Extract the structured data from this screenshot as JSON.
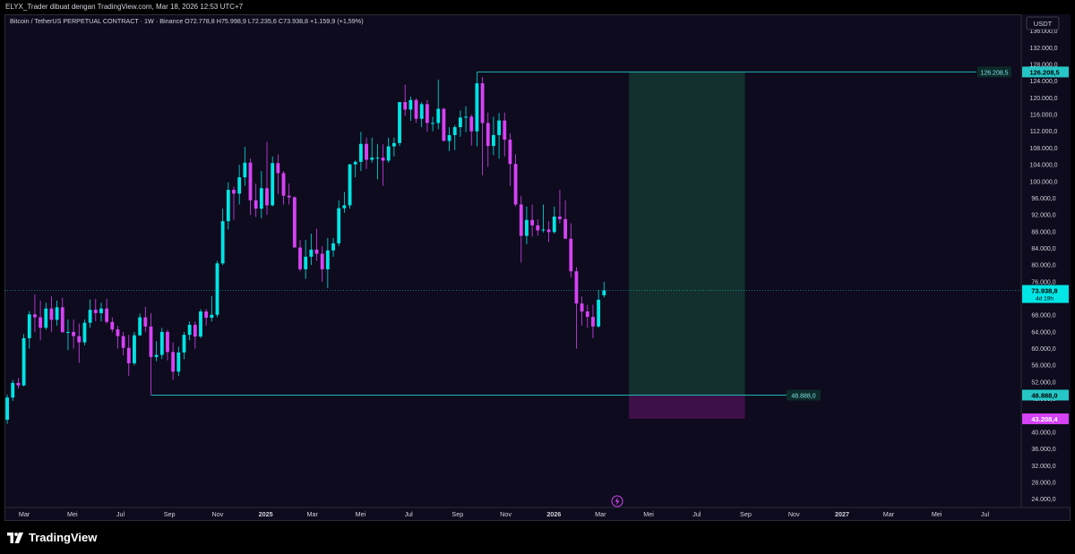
{
  "header": {
    "credit": "ELYX_Trader dibuat dengan TradingView.com, Mar 18, 2026 12:53 UTC+7"
  },
  "colors": {
    "bull": "#00e5e5",
    "bear": "#d642f5",
    "background": "#0d0b1d",
    "profit_zone": "#13302f",
    "loss_zone": "#3d1048",
    "level_line": "#1fb5b5"
  },
  "chart_data": {
    "type": "candlestick",
    "legend": "Bitcoin / TetherUS PERPETUAL CONTRACT · 1W · Binance  O72.778,8  H75.998,9  L72.235,6  C73.938,8  +1.159,9 (+1,59%)",
    "currency": "USDT",
    "y_range": [
      22000,
      140000
    ],
    "y_ticks": [
      24000,
      28000,
      32000,
      36000,
      40000,
      44000,
      48000,
      52000,
      56000,
      60000,
      64000,
      68000,
      72000,
      76000,
      80000,
      84000,
      88000,
      92000,
      96000,
      100000,
      104000,
      108000,
      112000,
      116000,
      120000,
      124000,
      128000,
      132000,
      136000
    ],
    "y_tick_labels": [
      "24.000,0",
      "28.000,0",
      "32.000,0",
      "36.000,0",
      "40.000,0",
      "44.000,0",
      "48.000,0",
      "52.000,0",
      "56.000,0",
      "60.000,0",
      "64.000,0",
      "68.000,0",
      "72.000,0",
      "76.000,0",
      "80.000,0",
      "84.000,0",
      "88.000,0",
      "92.000,0",
      "96.000,0",
      "100.000,0",
      "104.000,0",
      "108.000,0",
      "112.000,0",
      "116.000,0",
      "120.000,0",
      "124.000,0",
      "128.000,0",
      "132.000,0",
      "136.000,0"
    ],
    "x_range": [
      "2024-02-05",
      "2027-08-16"
    ],
    "x_ticks": [
      {
        "date": "2024-03-01",
        "label": "Mar",
        "bold": false
      },
      {
        "date": "2024-05-01",
        "label": "Mei",
        "bold": false
      },
      {
        "date": "2024-07-01",
        "label": "Jul",
        "bold": false
      },
      {
        "date": "2024-09-01",
        "label": "Sep",
        "bold": false
      },
      {
        "date": "2024-11-01",
        "label": "Nov",
        "bold": false
      },
      {
        "date": "2025-01-01",
        "label": "2025",
        "bold": true
      },
      {
        "date": "2025-03-01",
        "label": "Mar",
        "bold": false
      },
      {
        "date": "2025-05-01",
        "label": "Mei",
        "bold": false
      },
      {
        "date": "2025-07-01",
        "label": "Jul",
        "bold": false
      },
      {
        "date": "2025-09-01",
        "label": "Sep",
        "bold": false
      },
      {
        "date": "2025-11-01",
        "label": "Nov",
        "bold": false
      },
      {
        "date": "2026-01-01",
        "label": "2026",
        "bold": true
      },
      {
        "date": "2026-03-01",
        "label": "Mar",
        "bold": false
      },
      {
        "date": "2026-05-01",
        "label": "Mei",
        "bold": false
      },
      {
        "date": "2026-07-01",
        "label": "Jul",
        "bold": false
      },
      {
        "date": "2026-09-01",
        "label": "Sep",
        "bold": false
      },
      {
        "date": "2026-11-01",
        "label": "Nov",
        "bold": false
      },
      {
        "date": "2027-01-01",
        "label": "2027",
        "bold": true
      },
      {
        "date": "2027-03-01",
        "label": "Mar",
        "bold": false
      },
      {
        "date": "2027-05-01",
        "label": "Mei",
        "bold": false
      },
      {
        "date": "2027-07-01",
        "label": "Jul",
        "bold": false
      }
    ],
    "first_week": "2024-02-05",
    "candles": [
      [
        43000,
        49000,
        42000,
        48300
      ],
      [
        48300,
        52500,
        47500,
        51800
      ],
      [
        51800,
        53000,
        50500,
        51200
      ],
      [
        51200,
        63500,
        51000,
        62500
      ],
      [
        62500,
        69000,
        60000,
        68200
      ],
      [
        68200,
        73000,
        64000,
        67500
      ],
      [
        67500,
        71500,
        62000,
        65000
      ],
      [
        65000,
        71000,
        64500,
        69600
      ],
      [
        69600,
        72500,
        64000,
        66900
      ],
      [
        66900,
        71500,
        65500,
        69900
      ],
      [
        69900,
        72200,
        64500,
        63900
      ],
      [
        63900,
        67000,
        59600,
        64000
      ],
      [
        64000,
        67000,
        60000,
        63000
      ],
      [
        63000,
        66000,
        56600,
        61500
      ],
      [
        61500,
        67000,
        60800,
        66200
      ],
      [
        66200,
        71800,
        65000,
        69300
      ],
      [
        69300,
        71900,
        66600,
        68500
      ],
      [
        68500,
        71000,
        66500,
        69600
      ],
      [
        69600,
        71900,
        66000,
        66400
      ],
      [
        66400,
        67500,
        64000,
        64600
      ],
      [
        64600,
        65500,
        60000,
        63000
      ],
      [
        63000,
        64000,
        58400,
        60200
      ],
      [
        60200,
        63300,
        53500,
        56500
      ],
      [
        56500,
        64000,
        56000,
        63200
      ],
      [
        63200,
        68400,
        63000,
        67500
      ],
      [
        67500,
        70000,
        64000,
        65300
      ],
      [
        65300,
        68500,
        49000,
        58000
      ],
      [
        58000,
        61800,
        57000,
        58500
      ],
      [
        58500,
        65000,
        57500,
        64000
      ],
      [
        64000,
        64500,
        57200,
        59200
      ],
      [
        59200,
        61500,
        52500,
        54500
      ],
      [
        54500,
        60500,
        53500,
        59100
      ],
      [
        59100,
        64000,
        57500,
        63300
      ],
      [
        63300,
        66500,
        62000,
        65700
      ],
      [
        65700,
        66500,
        60000,
        62900
      ],
      [
        62900,
        69500,
        62500,
        68900
      ],
      [
        68900,
        69500,
        65500,
        67400
      ],
      [
        67400,
        72600,
        66500,
        68100
      ],
      [
        68100,
        81000,
        67500,
        80400
      ],
      [
        80400,
        93500,
        80000,
        90500
      ],
      [
        90500,
        99800,
        88500,
        98000
      ],
      [
        98000,
        98800,
        90800,
        97100
      ],
      [
        97100,
        104000,
        94500,
        101000
      ],
      [
        101000,
        108300,
        99000,
        104500
      ],
      [
        104500,
        105500,
        92000,
        95500
      ],
      [
        95500,
        99500,
        91500,
        93500
      ],
      [
        93500,
        102500,
        91200,
        98400
      ],
      [
        98400,
        109500,
        92000,
        94300
      ],
      [
        94300,
        106000,
        94000,
        104400
      ],
      [
        104400,
        106500,
        97000,
        102000
      ],
      [
        102000,
        102500,
        94500,
        96600
      ],
      [
        96600,
        99500,
        94500,
        96200
      ],
      [
        96200,
        96500,
        85000,
        84200
      ],
      [
        84200,
        86000,
        78500,
        79000
      ],
      [
        79000,
        86000,
        76700,
        82000
      ],
      [
        82000,
        87500,
        80000,
        83700
      ],
      [
        83700,
        88700,
        81000,
        82700
      ],
      [
        82700,
        84500,
        76000,
        79000
      ],
      [
        79000,
        86500,
        74500,
        83500
      ],
      [
        83500,
        86500,
        82000,
        85200
      ],
      [
        85200,
        95500,
        84500,
        93600
      ],
      [
        93600,
        97500,
        92500,
        94300
      ],
      [
        94300,
        104200,
        93500,
        104100
      ],
      [
        104100,
        105000,
        101000,
        104700
      ],
      [
        104700,
        111900,
        102500,
        109000
      ],
      [
        109000,
        110500,
        103000,
        105200
      ],
      [
        105200,
        110500,
        104500,
        105700
      ],
      [
        105700,
        109000,
        100500,
        105700
      ],
      [
        105700,
        108900,
        99000,
        105000
      ],
      [
        105000,
        110500,
        104500,
        108400
      ],
      [
        108400,
        110500,
        106000,
        109200
      ],
      [
        109200,
        119000,
        108500,
        119000
      ],
      [
        119000,
        123200,
        115700,
        117200
      ],
      [
        117200,
        120300,
        114500,
        119500
      ],
      [
        119500,
        119900,
        114000,
        115000
      ],
      [
        115000,
        119000,
        113000,
        118500
      ],
      [
        118500,
        119500,
        111900,
        114000
      ],
      [
        114000,
        115500,
        112000,
        114000
      ],
      [
        114000,
        124400,
        112500,
        117400
      ],
      [
        117400,
        117600,
        110700,
        109700
      ],
      [
        109700,
        113000,
        107300,
        111100
      ],
      [
        111100,
        113500,
        107500,
        113000
      ],
      [
        113000,
        117000,
        110700,
        115300
      ],
      [
        115300,
        118000,
        111800,
        115500
      ],
      [
        115500,
        116000,
        108600,
        112000
      ],
      [
        112000,
        126200,
        108400,
        123500
      ],
      [
        123500,
        125000,
        101500,
        114000
      ],
      [
        114000,
        116500,
        103500,
        108500
      ],
      [
        108500,
        115500,
        106300,
        111100
      ],
      [
        111100,
        116400,
        105500,
        114600
      ],
      [
        114600,
        116500,
        106000,
        110000
      ],
      [
        110000,
        111500,
        98900,
        104200
      ],
      [
        104200,
        106500,
        94000,
        94500
      ],
      [
        94500,
        96500,
        80600,
        87000
      ],
      [
        87000,
        94000,
        85000,
        90800
      ],
      [
        90800,
        94500,
        86800,
        89500
      ],
      [
        89500,
        91000,
        87000,
        88300
      ],
      [
        88300,
        94500,
        87800,
        88500
      ],
      [
        88500,
        90500,
        85500,
        87900
      ],
      [
        87900,
        94000,
        87500,
        91600
      ],
      [
        91600,
        98000,
        90000,
        91000
      ],
      [
        91000,
        95500,
        86500,
        86300
      ],
      [
        86300,
        90000,
        77000,
        78500
      ],
      [
        78500,
        79500,
        60000,
        70800
      ],
      [
        70800,
        72500,
        65500,
        68900
      ],
      [
        68900,
        70500,
        65000,
        67600
      ],
      [
        67600,
        70500,
        62500,
        65300
      ],
      [
        65300,
        74000,
        65000,
        71700
      ],
      [
        72778.8,
        75998.9,
        72235.6,
        73938.8
      ]
    ],
    "levels": {
      "upper": {
        "value": 126208.5,
        "label": "126.208,5",
        "start_week": 85
      },
      "current": {
        "value": 73938.8,
        "label": "73.938,8",
        "countdown": "4d 19h"
      },
      "lower": {
        "value": 48888.0,
        "label": "48.888,0",
        "start_week": 26
      },
      "stop": {
        "value": 43208.4,
        "label": "43.208,4"
      }
    },
    "position_box": {
      "start_date": "2026-04-06",
      "end_date": "2026-08-31",
      "entry": 48888.0,
      "target": 126208.5,
      "stop": 43208.4
    }
  },
  "footer": {
    "brand": "TradingView"
  }
}
